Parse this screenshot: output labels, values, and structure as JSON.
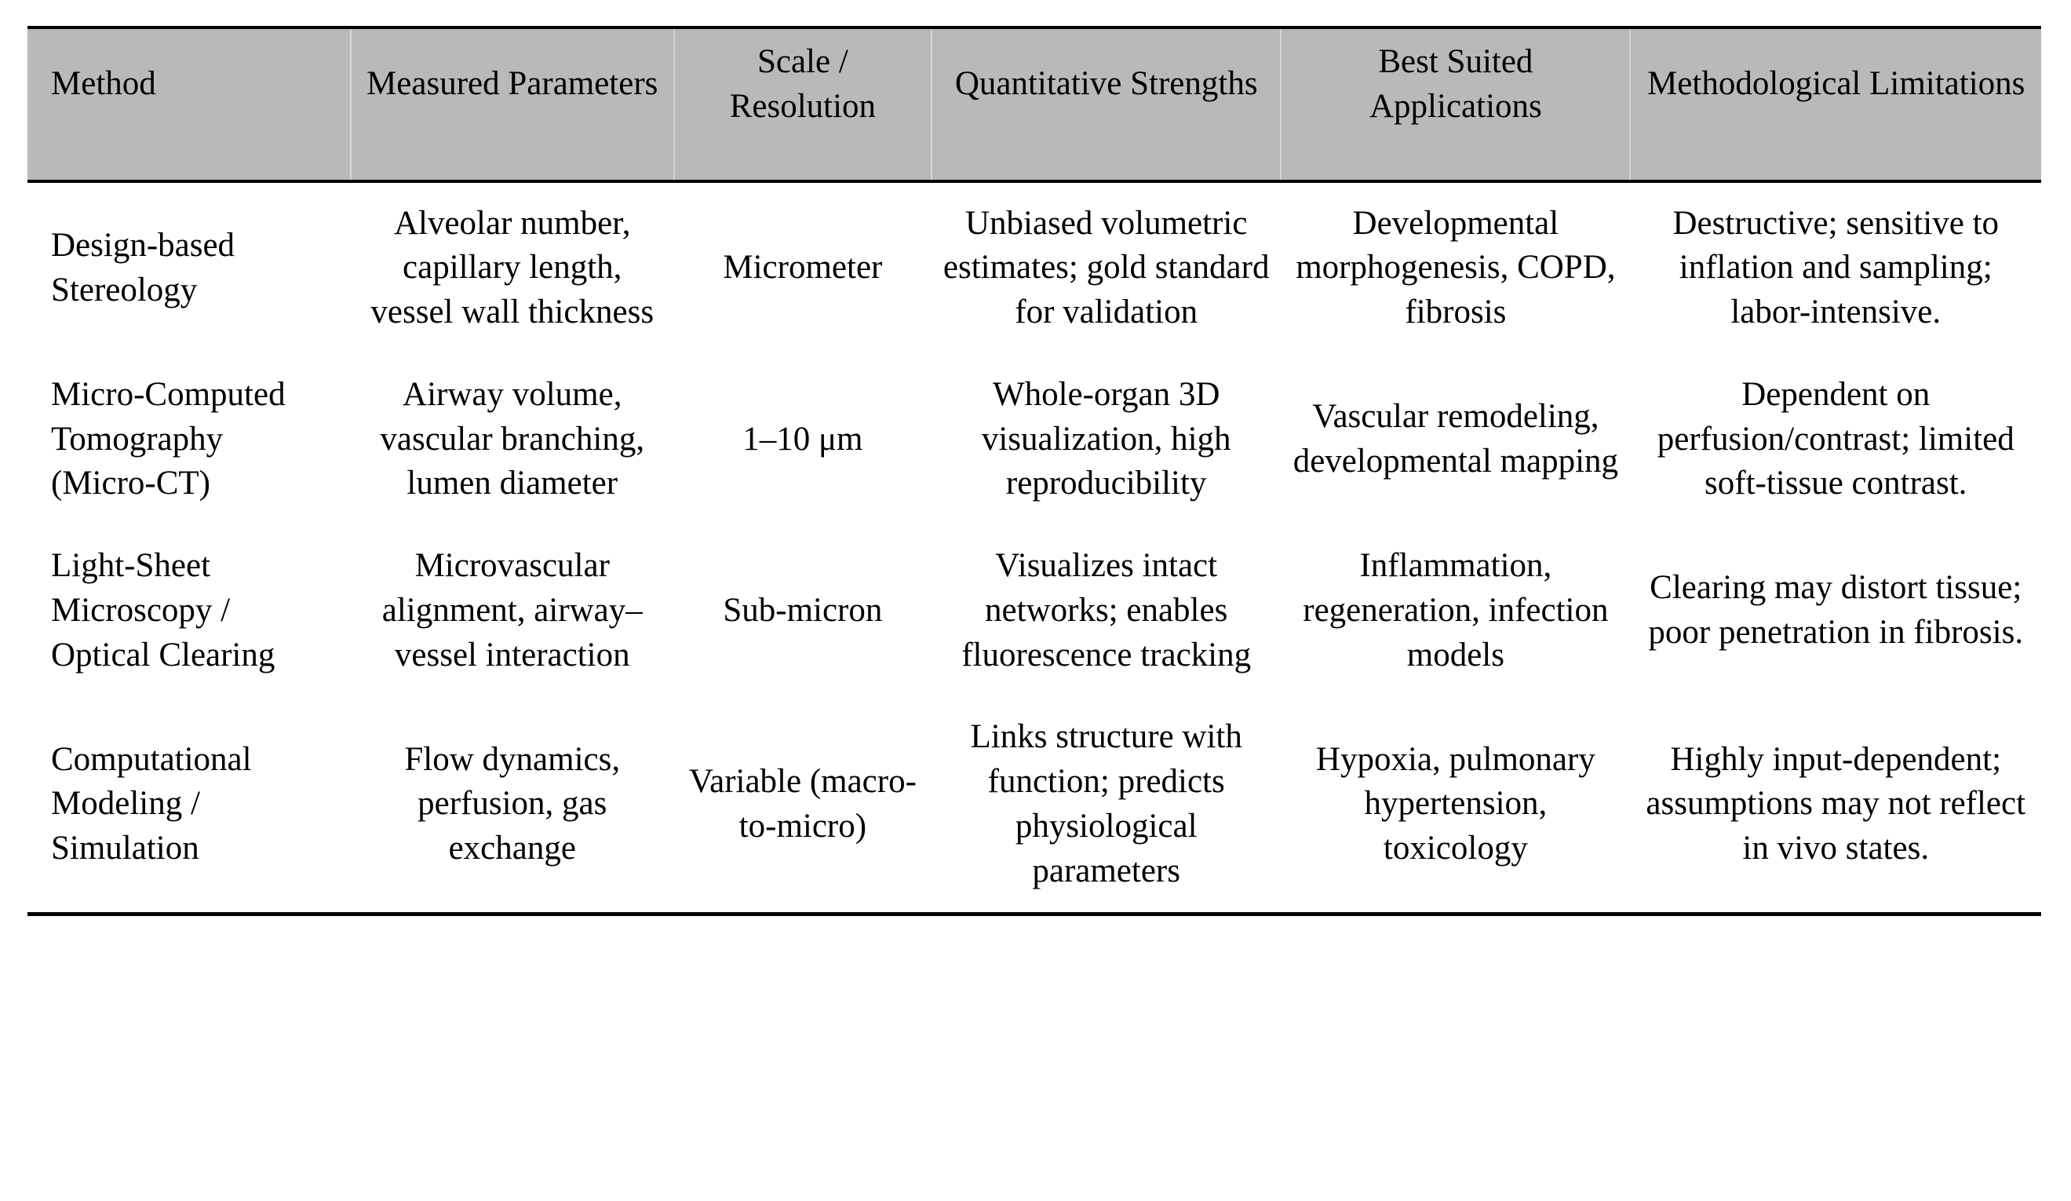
{
  "table": {
    "colors": {
      "header_bg": "#b9b9b9",
      "rule": "#000000",
      "header_divider": "#d6d6d6",
      "text": "#000000",
      "page_bg": "#ffffff"
    },
    "columns": [
      {
        "label": "Method"
      },
      {
        "label": "Measured Parameters"
      },
      {
        "label": "Scale / Resolution"
      },
      {
        "label": "Quantitative Strengths"
      },
      {
        "label": "Best Suited Applications"
      },
      {
        "label": "Methodological Limitations"
      }
    ],
    "rows": [
      {
        "method": "Design-based Stereology",
        "parameters": "Alveolar number, capillary length, vessel wall thickness",
        "scale": "Micrometer",
        "strengths": "Unbiased volumetric estimates; gold standard for validation",
        "applications": "Developmental morphogenesis, COPD, fibrosis",
        "limitations": "Destructive; sensitive to inflation and sampling; labor-intensive."
      },
      {
        "method": "Micro-Computed Tomography (Micro-CT)",
        "parameters": "Airway volume, vascular branching, lumen diameter",
        "scale": "1–10 μm",
        "strengths": "Whole-organ 3D visualization, high reproducibility",
        "applications": "Vascular remodeling, developmental mapping",
        "limitations": "Dependent on perfusion/contrast; limited soft-tissue contrast."
      },
      {
        "method": "Light-Sheet Microscopy / Optical Clearing",
        "parameters": "Microvascular alignment, airway–vessel interaction",
        "scale": "Sub-micron",
        "strengths": "Visualizes intact networks; enables fluorescence tracking",
        "applications": "Inflammation, regeneration, infection models",
        "limitations": "Clearing may distort tissue; poor penetration in fibrosis."
      },
      {
        "method": "Computational Modeling / Simulation",
        "parameters": "Flow dynamics, perfusion, gas exchange",
        "scale": "Variable (macro-to-micro)",
        "strengths": "Links structure with function; predicts physiological parameters",
        "applications": "Hypoxia, pulmonary hypertension, toxicology",
        "limitations": "Highly input-dependent; assumptions may not reflect in vivo states."
      }
    ]
  }
}
